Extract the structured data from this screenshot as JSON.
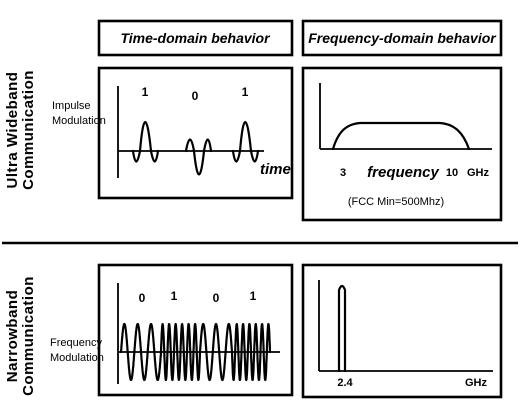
{
  "headers": {
    "time_domain": "Time-domain behavior",
    "frequency_domain": "Frequency-domain behavior"
  },
  "uwb": {
    "side_title_line1": "Ultra Wideband",
    "side_title_line2": "Communication",
    "modulation_line1": "Impulse",
    "modulation_line2": "Modulation",
    "bits": [
      "1",
      "0",
      "1"
    ],
    "time_label": "time",
    "freq_start": "3",
    "freq_label": "frequency",
    "freq_end": "10",
    "freq_unit": "GHz",
    "note": "(FCC Min=500Mhz)"
  },
  "narrowband": {
    "side_title_line1": "Narrowband",
    "side_title_line2": "Communication",
    "modulation_line1": "Frequency",
    "modulation_line2": "Modulation",
    "bits": [
      "0",
      "1",
      "0",
      "1"
    ],
    "freq_value": "2.4",
    "freq_unit": "GHz"
  }
}
